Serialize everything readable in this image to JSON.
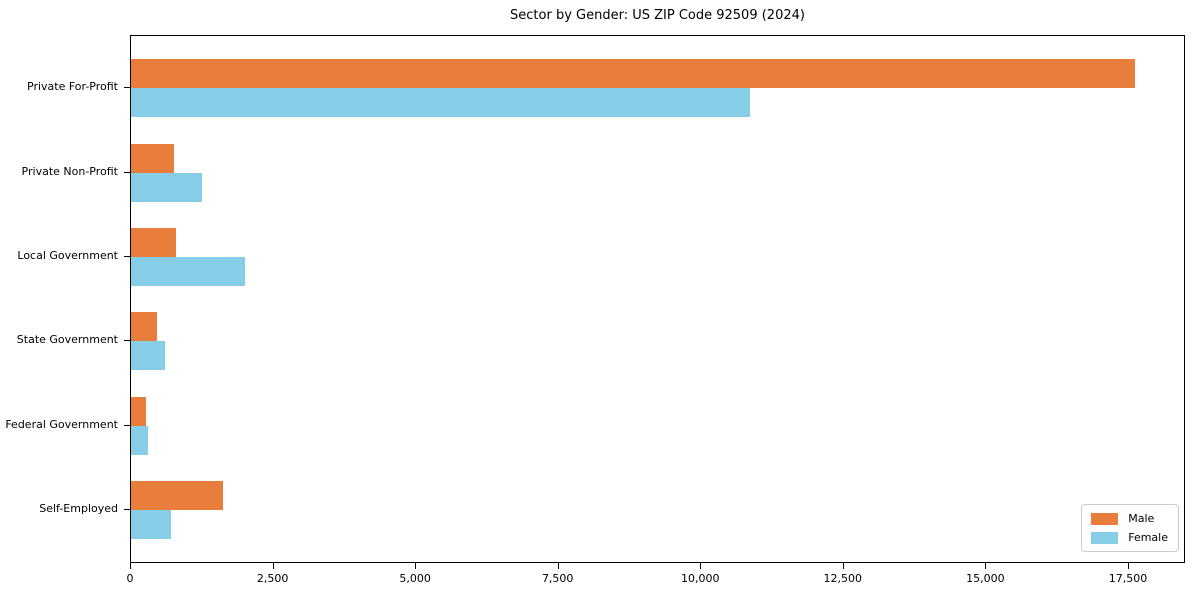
{
  "title": "Sector by Gender: US ZIP Code 92509 (2024)",
  "chart_data": {
    "type": "bar",
    "orientation": "horizontal",
    "title": "Sector by Gender: US ZIP Code 92509 (2024)",
    "categories": [
      "Private For-Profit",
      "Private Non-Profit",
      "Local Government",
      "State Government",
      "Federal Government",
      "Self-Employed"
    ],
    "series": [
      {
        "name": "Male",
        "color": "#e97d3b",
        "values": [
          17600,
          760,
          780,
          450,
          270,
          1620
        ]
      },
      {
        "name": "Female",
        "color": "#86cde8",
        "values": [
          10850,
          1250,
          1990,
          600,
          290,
          700
        ]
      }
    ],
    "xlabel": "",
    "ylabel": "",
    "xlim": [
      0,
      18500
    ],
    "x_ticks": [
      0,
      2500,
      5000,
      7500,
      10000,
      12500,
      15000,
      17500
    ],
    "x_tick_labels": [
      "0",
      "2,500",
      "5,000",
      "7,500",
      "10,000",
      "12,500",
      "15,000",
      "17,500"
    ],
    "legend_position": "lower right",
    "grid": false
  }
}
